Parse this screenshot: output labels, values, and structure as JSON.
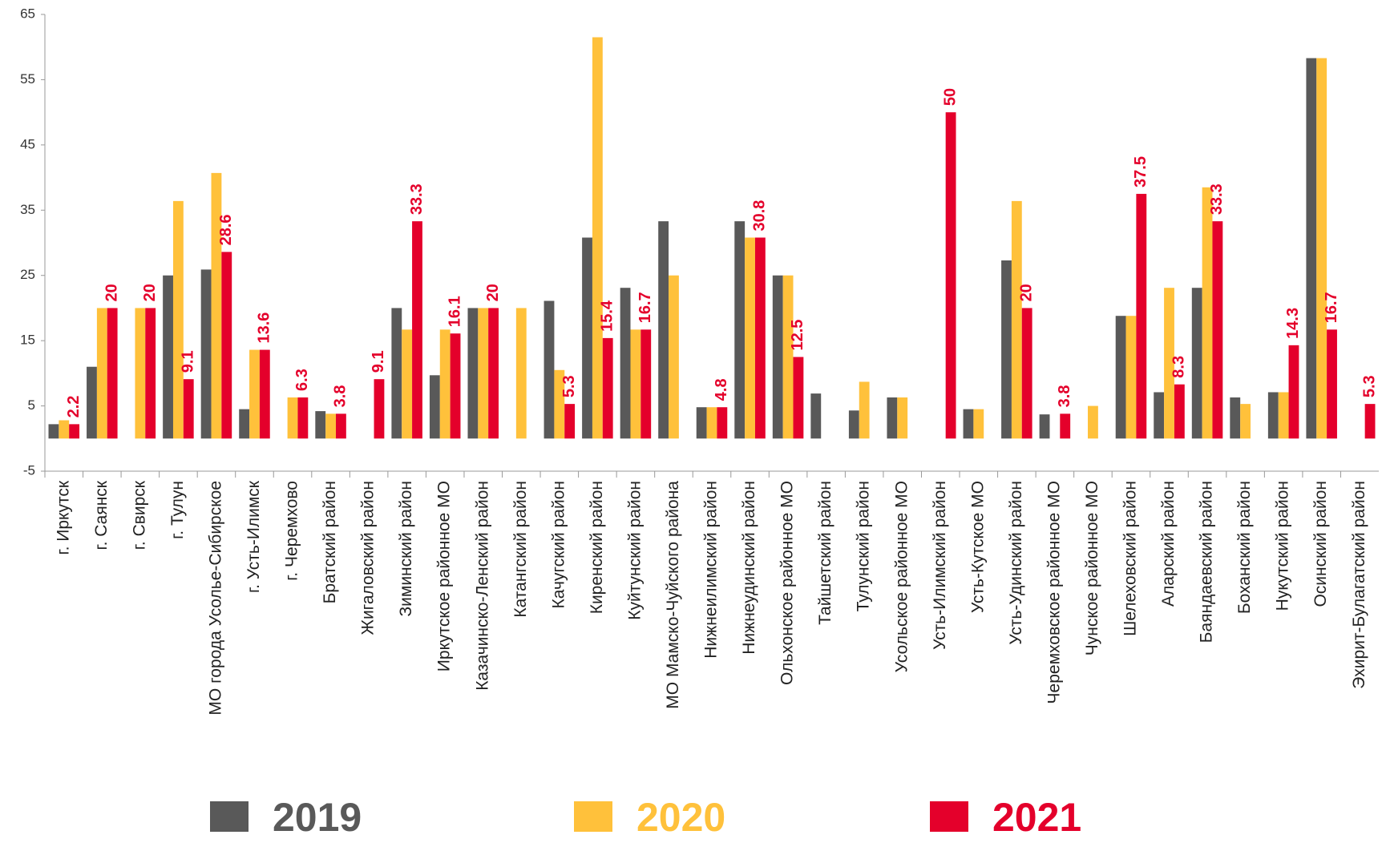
{
  "chart_data": {
    "type": "bar",
    "categories": [
      "г. Иркутск",
      "г. Саянск",
      "г. Свирск",
      "г. Тулун",
      "МО города Усолье-Сибирское",
      "г. Усть-Илимск",
      "г. Черемхово",
      "Братский район",
      "Жигаловский район",
      "Зиминский район",
      "Иркутское районное МО",
      "Казачинско-Ленский район",
      "Катангский район",
      "Качугский район",
      "Киренский район",
      "Куйтунский район",
      "МО Мамско-Чуйского района",
      "Нижнеилимский район",
      "Нижнеудинский район",
      "Ольхонское районное МО",
      "Тайшетский район",
      "Тулунский район",
      "Усольское районное МО",
      "Усть-Илимский район",
      "Усть-Кутское МО",
      "Усть-Удинский район",
      "Черемховское районное МО",
      "Чунское районное МО",
      "Шелеховский район",
      "Аларский район",
      "Баяндаевский район",
      "Боханский район",
      "Нукутский район",
      "Осинский район",
      "Эхирит-Булагатский район"
    ],
    "series": [
      {
        "name": "2019",
        "color": "#595959",
        "values": [
          2.2,
          11,
          null,
          25,
          25.9,
          4.5,
          null,
          4.2,
          null,
          20,
          9.7,
          20,
          null,
          21.1,
          30.8,
          23.1,
          33.3,
          4.8,
          33.3,
          25,
          6.9,
          4.3,
          6.3,
          null,
          4.5,
          27.3,
          3.7,
          null,
          18.8,
          7.1,
          23.1,
          6.3,
          7.1,
          58.3,
          null
        ]
      },
      {
        "name": "2020",
        "color": "#ffc13b",
        "values": [
          2.8,
          20,
          20,
          36.4,
          40.7,
          13.6,
          6.3,
          3.8,
          null,
          16.7,
          16.7,
          20,
          20,
          10.5,
          61.5,
          16.7,
          25,
          4.8,
          30.8,
          25,
          null,
          8.7,
          6.3,
          null,
          4.5,
          36.4,
          null,
          5,
          18.8,
          23.1,
          38.5,
          5.3,
          7.1,
          58.3,
          null
        ]
      },
      {
        "name": "2021",
        "color": "#e4002b",
        "values": [
          2.2,
          20,
          20,
          9.1,
          28.6,
          13.6,
          6.3,
          3.8,
          9.1,
          33.3,
          16.1,
          20,
          null,
          5.3,
          15.4,
          16.7,
          null,
          4.8,
          30.8,
          12.5,
          null,
          null,
          null,
          50,
          null,
          20,
          3.8,
          null,
          37.5,
          8.3,
          33.3,
          null,
          14.3,
          16.7,
          5.3
        ]
      }
    ],
    "labeled_series": 2,
    "ylim": [
      -5,
      65
    ],
    "yticks": [
      -5,
      5,
      15,
      25,
      35,
      45,
      55,
      65
    ],
    "grid": false
  }
}
